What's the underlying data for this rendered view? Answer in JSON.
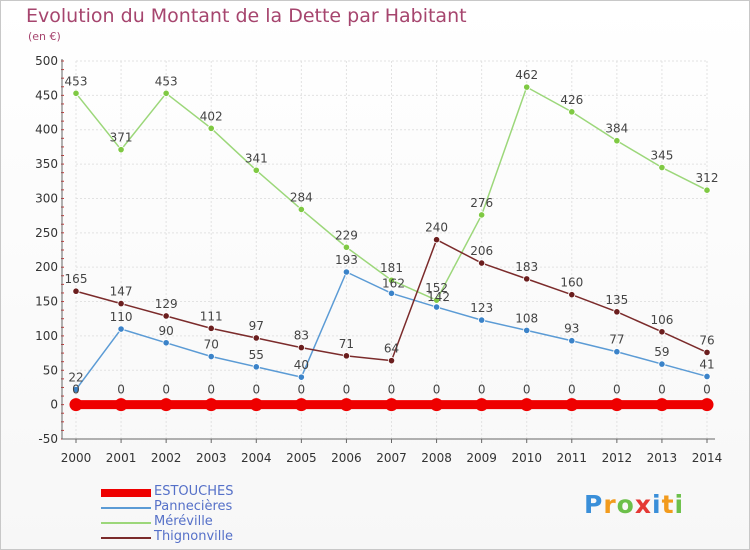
{
  "chart_data": {
    "type": "line",
    "title": "Evolution du Montant de la Dette par Habitant",
    "subtitle": "(en €)",
    "x": [
      "2000",
      "2001",
      "2002",
      "2003",
      "2004",
      "2005",
      "2006",
      "2007",
      "2008",
      "2009",
      "2010",
      "2011",
      "2012",
      "2013",
      "2014"
    ],
    "ylim": [
      -50,
      500
    ],
    "yticks": [
      -50,
      0,
      50,
      100,
      150,
      200,
      250,
      300,
      350,
      400,
      450,
      500
    ],
    "grid": true,
    "legend_position": "bottom-left",
    "series": [
      {
        "name": "Pannecières",
        "color": "#5b9bd5",
        "point_color": "#3b83c9",
        "values": [
          22,
          110,
          90,
          70,
          55,
          40,
          193,
          162,
          142,
          123,
          108,
          93,
          77,
          59,
          41
        ],
        "labels": [
          "22",
          "110",
          "90",
          "70",
          "55",
          "40",
          "193",
          "",
          "",
          "123",
          "108",
          "93",
          "77",
          "59",
          "41"
        ]
      },
      {
        "name": "Méréville",
        "color": "#9cd77a",
        "point_color": "#7fc943",
        "values": [
          453,
          371,
          453,
          402,
          341,
          284,
          229,
          181,
          152,
          276,
          462,
          426,
          384,
          345,
          312
        ],
        "labels": [
          "453",
          "371",
          "453",
          "402",
          "341",
          "284",
          "229",
          "181",
          "152",
          "276",
          "462",
          "426",
          "384",
          "345",
          "312"
        ]
      },
      {
        "name": "Thignonville",
        "color": "#7b2b2b",
        "point_color": "#6b1e1e",
        "values": [
          165,
          147,
          129,
          111,
          97,
          83,
          71,
          64,
          240,
          206,
          183,
          160,
          135,
          106,
          76
        ],
        "labels": [
          "165",
          "147",
          "129",
          "111",
          "97",
          "83",
          "71",
          "64",
          "240",
          "206",
          "183",
          "160",
          "135",
          "106",
          "76"
        ]
      },
      {
        "name": "ESTOUCHES",
        "color": "#ee0000",
        "point_color": "#ee0000",
        "thick": true,
        "values": [
          0,
          0,
          0,
          0,
          0,
          0,
          0,
          0,
          0,
          0,
          0,
          0,
          0,
          0,
          0
        ],
        "labels": [
          "0",
          "0",
          "0",
          "0",
          "0",
          "0",
          "0",
          "0",
          "0",
          "0",
          "0",
          "0",
          "0",
          "0",
          "0"
        ]
      }
    ],
    "extra_labels": [
      {
        "x": "2007",
        "y": 162,
        "text": "162"
      },
      {
        "x": "2008",
        "y": 142,
        "text": "142"
      }
    ]
  },
  "legend": [
    {
      "name": "ESTOUCHES",
      "color": "#ee0000",
      "text_color": "#5570c8",
      "thick": true
    },
    {
      "name": "Pannecières",
      "color": "#5b9bd5",
      "text_color": "#5570c8"
    },
    {
      "name": "Méréville",
      "color": "#9cd77a",
      "text_color": "#5570c8"
    },
    {
      "name": "Thignonville",
      "color": "#7b2b2b",
      "text_color": "#5570c8"
    }
  ],
  "logo": {
    "letters": [
      "P",
      "r",
      "o",
      "x",
      "i",
      "t",
      "i"
    ],
    "colors": [
      "#3a8fd9",
      "#f29b1d",
      "#6cc04a",
      "#e53935",
      "#3a8fd9",
      "#f29b1d",
      "#6cc04a"
    ]
  }
}
